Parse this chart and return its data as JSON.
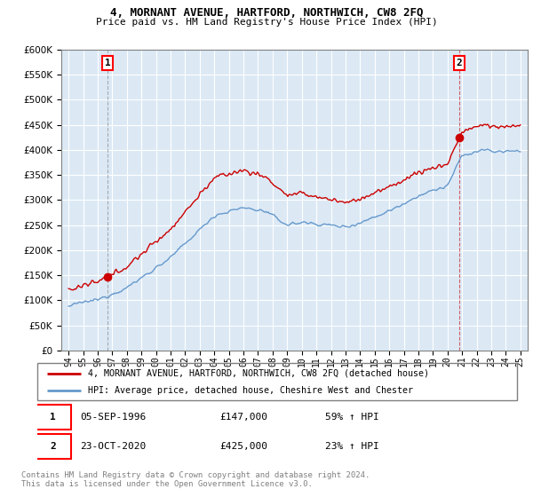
{
  "title": "4, MORNANT AVENUE, HARTFORD, NORTHWICH, CW8 2FQ",
  "subtitle": "Price paid vs. HM Land Registry's House Price Index (HPI)",
  "sale1_date": "05-SEP-1996",
  "sale1_price": 147000,
  "sale1_label": "59% ↑ HPI",
  "sale2_date": "23-OCT-2020",
  "sale2_price": 425000,
  "sale2_label": "23% ↑ HPI",
  "legend_line1": "4, MORNANT AVENUE, HARTFORD, NORTHWICH, CW8 2FQ (detached house)",
  "legend_line2": "HPI: Average price, detached house, Cheshire West and Chester",
  "footer": "Contains HM Land Registry data © Crown copyright and database right 2024.\nThis data is licensed under the Open Government Licence v3.0.",
  "price_color": "#cc0000",
  "hpi_color": "#6699cc",
  "bg_color": "#dce9f5",
  "marker1_x": 1996.67,
  "marker2_x": 2020.81,
  "ylim_min": 0,
  "ylim_max": 600000,
  "xlim_min": 1993.5,
  "xlim_max": 2025.5,
  "yticks": [
    0,
    50000,
    100000,
    150000,
    200000,
    250000,
    300000,
    350000,
    400000,
    450000,
    500000,
    550000,
    600000
  ],
  "xticks": [
    1994,
    1995,
    1996,
    1997,
    1998,
    1999,
    2000,
    2001,
    2002,
    2003,
    2004,
    2005,
    2006,
    2007,
    2008,
    2009,
    2010,
    2011,
    2012,
    2013,
    2014,
    2015,
    2016,
    2017,
    2018,
    2019,
    2020,
    2021,
    2022,
    2023,
    2024,
    2025
  ],
  "xtick_labels": [
    "94",
    "95",
    "96",
    "97",
    "98",
    "99",
    "00",
    "01",
    "02",
    "03",
    "04",
    "05",
    "06",
    "07",
    "08",
    "09",
    "10",
    "11",
    "12",
    "13",
    "14",
    "15",
    "16",
    "17",
    "18",
    "19",
    "20",
    "21",
    "22",
    "23",
    "24",
    "25"
  ]
}
